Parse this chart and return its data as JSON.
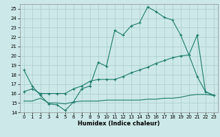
{
  "xlabel": "Humidex (Indice chaleur)",
  "xlim": [
    -0.5,
    23.5
  ],
  "ylim": [
    14,
    25.5
  ],
  "yticks": [
    14,
    15,
    16,
    17,
    18,
    19,
    20,
    21,
    22,
    23,
    24,
    25
  ],
  "xticks": [
    0,
    1,
    2,
    3,
    4,
    5,
    6,
    7,
    8,
    9,
    10,
    11,
    12,
    13,
    14,
    15,
    16,
    17,
    18,
    19,
    20,
    21,
    22,
    23
  ],
  "bg_color": "#cce8e8",
  "grid_color": "#aacccc",
  "line_color": "#1a7a6a",
  "line1_x": [
    0,
    1,
    2,
    3,
    4,
    5,
    6,
    7,
    8,
    9,
    10,
    11,
    12,
    13,
    14,
    15,
    16,
    17,
    18,
    19,
    20,
    21,
    22,
    23
  ],
  "line1_y": [
    18.5,
    16.8,
    15.8,
    14.9,
    14.8,
    14.2,
    15.1,
    16.5,
    16.8,
    19.3,
    18.9,
    22.7,
    22.2,
    23.2,
    23.5,
    25.2,
    24.7,
    24.1,
    23.8,
    22.2,
    20.1,
    17.8,
    16.2,
    15.8
  ],
  "line2_x": [
    0,
    1,
    2,
    3,
    4,
    5,
    6,
    7,
    8,
    9,
    10,
    11,
    12,
    13,
    14,
    15,
    16,
    17,
    18,
    19,
    20,
    21,
    22,
    23
  ],
  "line2_y": [
    16.2,
    16.5,
    16.0,
    16.0,
    16.0,
    16.0,
    16.5,
    16.8,
    17.3,
    17.5,
    17.5,
    17.5,
    17.8,
    18.2,
    18.5,
    18.8,
    19.2,
    19.5,
    19.8,
    20.0,
    20.1,
    22.2,
    16.2,
    15.8
  ],
  "line3_x": [
    0,
    1,
    2,
    3,
    4,
    5,
    6,
    7,
    8,
    9,
    10,
    11,
    12,
    13,
    14,
    15,
    16,
    17,
    18,
    19,
    20,
    21,
    22,
    23
  ],
  "line3_y": [
    15.2,
    15.2,
    15.5,
    15.0,
    15.0,
    14.9,
    15.1,
    15.2,
    15.2,
    15.2,
    15.3,
    15.3,
    15.3,
    15.3,
    15.3,
    15.4,
    15.4,
    15.5,
    15.5,
    15.6,
    15.8,
    15.9,
    15.9,
    15.8
  ]
}
